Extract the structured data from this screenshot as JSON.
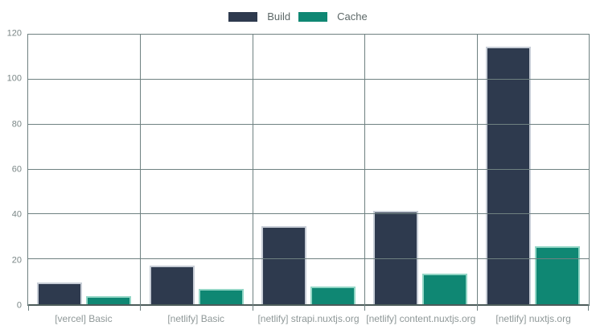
{
  "chart_data": {
    "type": "bar",
    "categories": [
      "[vercel] Basic",
      "[netlify] Basic",
      "[netlify] strapi.nuxtjs.org",
      "[netlify] content.nuxtjs.org",
      "[netlify] nuxtjs.org"
    ],
    "series": [
      {
        "name": "Build",
        "values": [
          9,
          16.5,
          34,
          41,
          114
        ],
        "color": "#2e3a4e",
        "border_color": "#c7cdd6"
      },
      {
        "name": "Cache",
        "values": [
          3,
          6,
          7,
          13,
          25
        ],
        "color": "#0f8773",
        "border_color": "#93d6c6"
      }
    ],
    "title": "",
    "xlabel": "",
    "ylabel": "",
    "ylim": [
      0,
      120
    ],
    "yticks": [
      0,
      20,
      40,
      60,
      80,
      100,
      120
    ],
    "grid": true,
    "legend_position": "top-center",
    "grid_color": "#6f8181",
    "axis_text_color": "#7b8787",
    "category_text_color": "#8f9898"
  },
  "legend": {
    "items": [
      {
        "label": "Build",
        "color": "#2e3a4e"
      },
      {
        "label": "Cache",
        "color": "#0f8773"
      }
    ]
  }
}
